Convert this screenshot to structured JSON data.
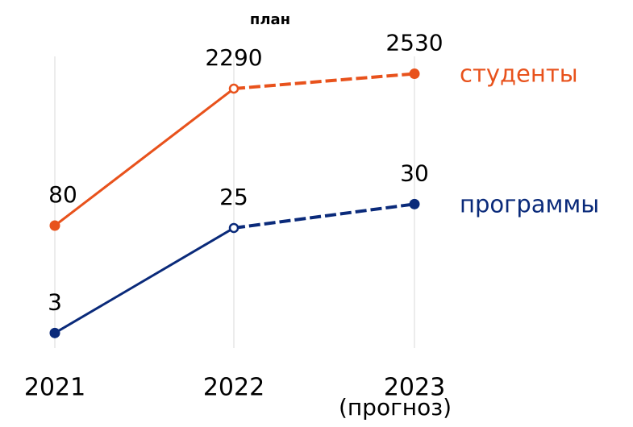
{
  "chart_data": {
    "type": "line",
    "categories": [
      "2021",
      "2022",
      "2023"
    ],
    "category_note": "(прогноз)",
    "plan_label": "план",
    "forecast_start": 1,
    "grid": true,
    "ylim": [
      -2000,
      3200
    ],
    "y2lim": [
      -1.5,
      66
    ],
    "series": [
      {
        "name": "студенты",
        "color": "#e8521c",
        "values": [
          80,
          2290,
          2530
        ]
      },
      {
        "name": "программы",
        "color": "#0a2a7a",
        "axis": "y2",
        "values": [
          3,
          25,
          30
        ]
      }
    ]
  }
}
